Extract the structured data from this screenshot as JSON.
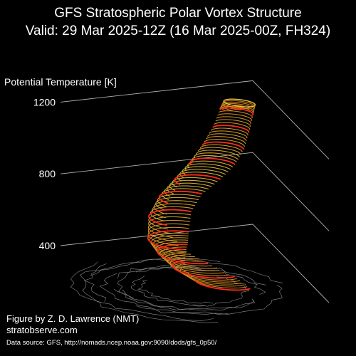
{
  "figure": {
    "title_line1": "GFS Stratospheric Polar Vortex Structure",
    "title_line2": "Valid: 29 Mar 2025-12Z  (16 Mar 2025-00Z, FH324)",
    "credit_line1": "Figure by Z. D. Lawrence (NMT)",
    "credit_line2": "stratobserve.com",
    "credit_line3": "Data source: GFS, http://nomads.ncep.noaa.gov:9090/dods/gfs_0p50/"
  },
  "colors": {
    "background": "#000000",
    "text": "#ffffff",
    "axis_lines": "#b0b0b0",
    "coastline": "#8a8a8a",
    "vortex_low": "#d98a1e",
    "vortex_mid": "#e8c23a",
    "vortex_high": "#ff2a1a"
  },
  "chart_data": {
    "type": "3d-surface",
    "zlabel": "Potential Temperature [K]",
    "zticks": [
      400,
      800,
      1200
    ],
    "zlim": [
      300,
      1300
    ],
    "vortex_levels": [
      {
        "theta": 350,
        "center": [
          0.38,
          -0.08
        ],
        "rx": 0.26,
        "ry": 0.16,
        "arc": [
          200,
          350
        ]
      },
      {
        "theta": 400,
        "center": [
          0.2,
          -0.05
        ],
        "rx": 0.3,
        "ry": 0.2,
        "arc": [
          150,
          345
        ]
      },
      {
        "theta": 450,
        "center": [
          0.02,
          0.02
        ],
        "rx": 0.3,
        "ry": 0.22,
        "arc": [
          120,
          320
        ]
      },
      {
        "theta": 500,
        "center": [
          -0.12,
          0.08
        ],
        "rx": 0.28,
        "ry": 0.22,
        "arc": [
          100,
          300
        ]
      },
      {
        "theta": 600,
        "center": [
          -0.18,
          0.16
        ],
        "rx": 0.26,
        "ry": 0.2,
        "arc": [
          90,
          270
        ]
      },
      {
        "theta": 700,
        "center": [
          -0.14,
          0.22
        ],
        "rx": 0.24,
        "ry": 0.18,
        "arc": [
          80,
          250
        ]
      },
      {
        "theta": 800,
        "center": [
          -0.04,
          0.26
        ],
        "rx": 0.22,
        "ry": 0.16,
        "arc": [
          60,
          240
        ]
      },
      {
        "theta": 900,
        "center": [
          0.06,
          0.3
        ],
        "rx": 0.2,
        "ry": 0.14,
        "arc": [
          40,
          220
        ]
      },
      {
        "theta": 1000,
        "center": [
          0.14,
          0.32
        ],
        "rx": 0.18,
        "ry": 0.12,
        "arc": [
          20,
          200
        ]
      },
      {
        "theta": 1100,
        "center": [
          0.2,
          0.34
        ],
        "rx": 0.16,
        "ry": 0.1,
        "arc": [
          10,
          190
        ]
      },
      {
        "theta": 1200,
        "center": [
          0.24,
          0.36
        ],
        "rx": 0.15,
        "ry": 0.09,
        "arc": [
          0,
          180
        ]
      },
      {
        "theta": 1250,
        "center": [
          0.26,
          0.38
        ],
        "rx": 0.14,
        "ry": 0.08,
        "arc": [
          0,
          360
        ]
      }
    ]
  }
}
